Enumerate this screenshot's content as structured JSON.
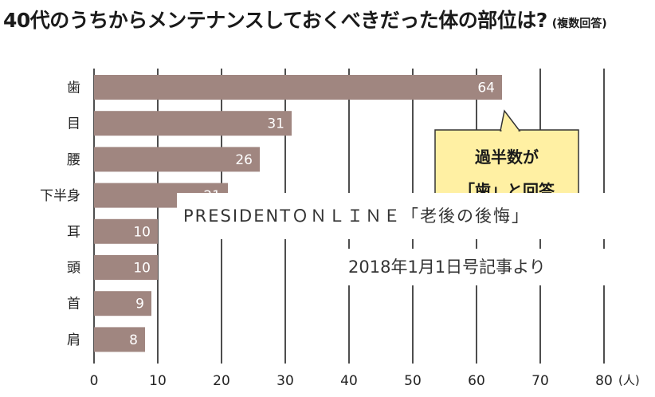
{
  "chart_data": {
    "type": "bar",
    "orientation": "horizontal",
    "title": "40代のうちからメンテナンスしておくべきだった体の部位は?",
    "subtitle": "(複数回答)",
    "categories": [
      "歯",
      "目",
      "腰",
      "下半身",
      "耳",
      "頭",
      "首",
      "肩"
    ],
    "values": [
      64,
      31,
      26,
      21,
      10,
      10,
      9,
      8
    ],
    "xticks": [
      0,
      10,
      20,
      30,
      40,
      50,
      60,
      70,
      80
    ],
    "x_unit": "(人)",
    "xlim": [
      0,
      80
    ],
    "grid": true,
    "annotations": [
      "過半数が",
      "「歯」と回答"
    ],
    "colors": {
      "bar": "#a08680",
      "value_label": "#ffffff",
      "callout_fill": "#fff0a3",
      "gridline": "#222222"
    }
  },
  "overlay": {
    "line1": "PRESIDENTＯＮＬＩＮＥ「老後の後悔」",
    "line2": "2018年1月1日号記事より"
  }
}
